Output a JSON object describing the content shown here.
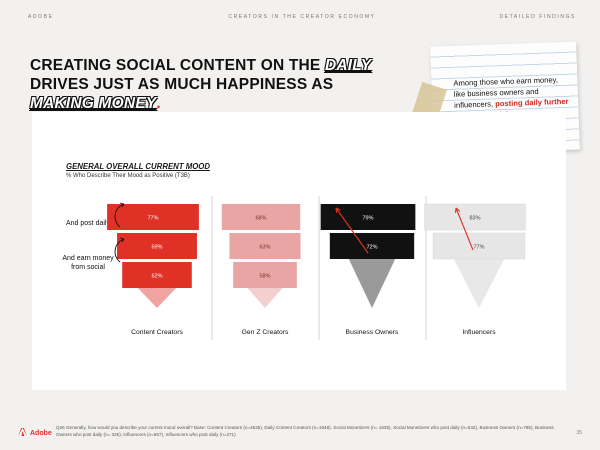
{
  "header": {
    "left": "ADOBE",
    "center": "CREATORS IN THE CREATOR ECONOMY",
    "right": "DETAILED FINDINGS"
  },
  "headline": {
    "part1": "CREATING SOCIAL CONTENT ON THE ",
    "em1": "DAILY",
    "part2": " DRIVES JUST AS MUCH HAPPINESS AS ",
    "em2": "MAKING MONEY",
    "part3": "."
  },
  "callout": {
    "text": "Among those who earn money, like business owners and influencers, ",
    "highlight": "posting daily further boosts positivity."
  },
  "chart_data": {
    "type": "bar",
    "title": "GENERAL OVERALL CURRENT MOOD",
    "subtitle": "% Who Describe Their Mood as Positive (T3B)",
    "row_labels": [
      "And post daily",
      "And earn money from social"
    ],
    "groups": [
      {
        "name": "Content Creators",
        "color": "#e03127",
        "values": [
          77,
          69,
          62
        ]
      },
      {
        "name": "Gen Z Creators",
        "color": "#e8a5a3",
        "values": [
          68,
          63,
          58
        ]
      },
      {
        "name": "Business Owners",
        "color": "#111111",
        "values": [
          79,
          72
        ]
      },
      {
        "name": "Influencers",
        "color": "#e6e6e6",
        "values": [
          83,
          77
        ]
      }
    ]
  },
  "footer": {
    "logo": "Adobe",
    "note": "Q26 Generally, how would you describe your current mood overall? Base: Content Creators (n=4535), Daily Content Creators (n=1948), Social Monetizers (n= 1535), Social Monetizers who post daily (n=532), Business Owners (n=785), Business Owners who post daily (n= 325), Influencers (n=657), Influencers who post daily (n=271)",
    "page": "35"
  }
}
